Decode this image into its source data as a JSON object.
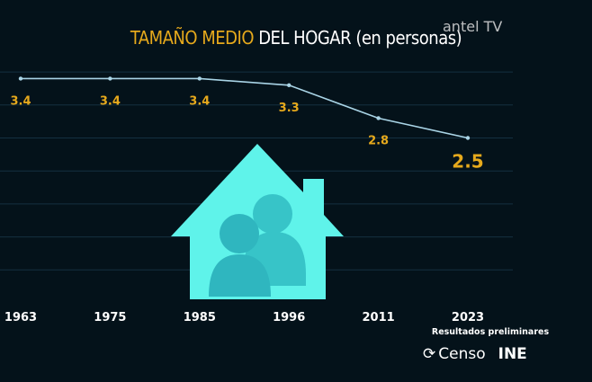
{
  "brand": "antel TV",
  "chart_data": {
    "type": "line",
    "title_highlight": "TAMAÑO MEDIO",
    "title_rest": "DEL HOGAR (en personas)",
    "categories": [
      "1963",
      "1975",
      "1985",
      "1996",
      "2011",
      "2023"
    ],
    "values": [
      3.4,
      3.4,
      3.4,
      3.3,
      2.8,
      2.5
    ],
    "value_labels": [
      "3.4",
      "3.4",
      "3.4",
      "3.3",
      "2.8",
      "2.5"
    ],
    "ylim": [
      0,
      3.5
    ],
    "grid": true,
    "line_color": "#a9d4e6",
    "label_color": "#e6a91c",
    "icon": "house-with-people-icon",
    "icon_color": "#5ff3ea"
  },
  "footer": {
    "note": "Resultados preliminares",
    "logo1": "Censo",
    "logo2": "INE"
  }
}
